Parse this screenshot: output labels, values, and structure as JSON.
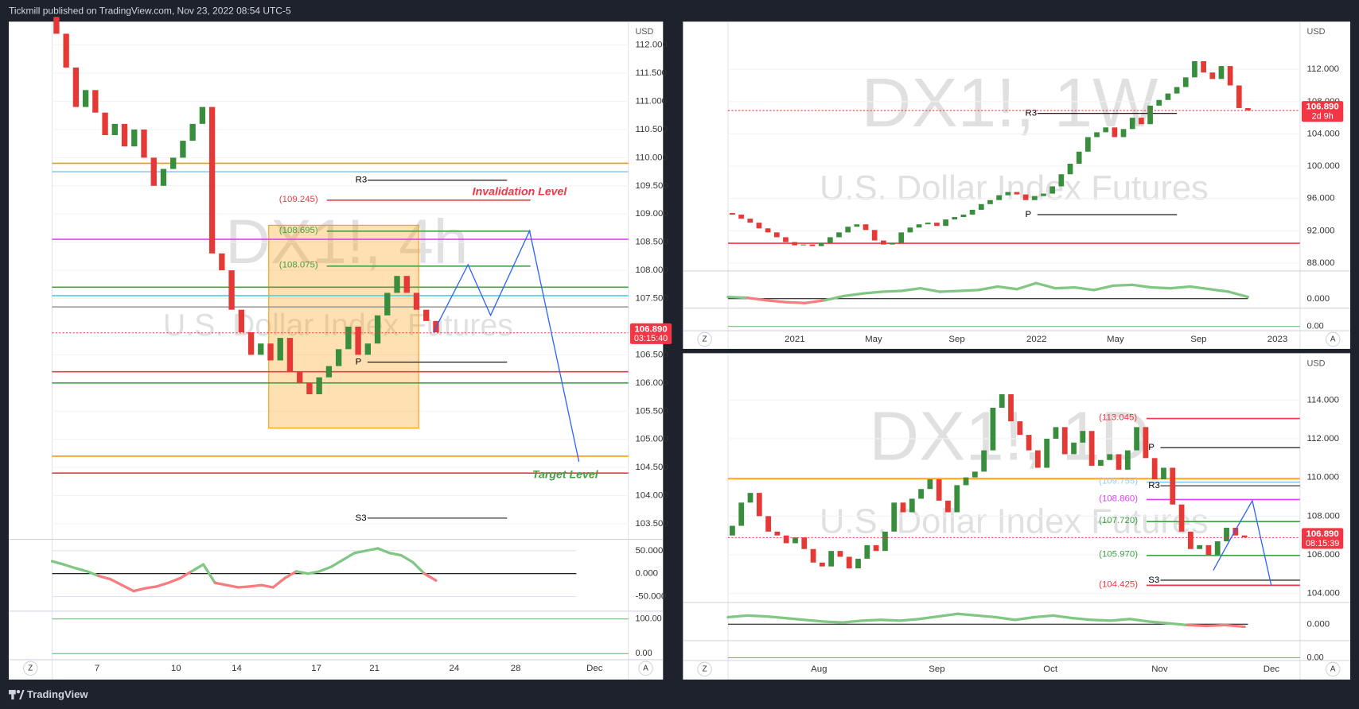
{
  "header": {
    "publisher": "Tickmill published on TradingView.com, Nov 23, 2022 08:54 UTC-5",
    "brand": "TradingView"
  },
  "chart_data": [
    {
      "type": "candlestick",
      "title": "DX1!, 4h",
      "subtitle": "U.S. Dollar Index Futures",
      "currency": "USD",
      "up_color": "#388e3c",
      "down_color": "#e53935",
      "open": 112.5,
      "closes": [
        112.2,
        111.6,
        110.9,
        111.2,
        110.8,
        110.4,
        110.6,
        110.2,
        110.5,
        110.0,
        109.5,
        109.8,
        110.0,
        110.3,
        110.6,
        110.9,
        108.3,
        108.0,
        107.3,
        106.9,
        106.5,
        106.7,
        106.4,
        106.8,
        106.2,
        106.0,
        105.8,
        106.1,
        106.3,
        106.6,
        107.0,
        106.5,
        106.7,
        107.2,
        107.6,
        107.9,
        107.6,
        107.3,
        107.1,
        106.9
      ],
      "ylim": [
        103.27,
        112.415
      ],
      "yticks": [
        {
          "value": 112,
          "label": "112.000"
        },
        {
          "value": 111.5,
          "label": "111.500"
        },
        {
          "value": 111,
          "label": "111.000"
        },
        {
          "value": 110.5,
          "label": "110.500"
        },
        {
          "value": 110,
          "label": "110.000"
        },
        {
          "value": 109.5,
          "label": "109.500"
        },
        {
          "value": 109,
          "label": "109.000"
        },
        {
          "value": 108.5,
          "label": "108.500"
        },
        {
          "value": 108,
          "label": "108.000"
        },
        {
          "value": 107.5,
          "label": "107.500"
        },
        {
          "value": 106.5,
          "label": "106.500"
        },
        {
          "value": 106,
          "label": "106.000"
        },
        {
          "value": 105.5,
          "label": "105.500"
        },
        {
          "value": 105,
          "label": "105.000"
        },
        {
          "value": 104.5,
          "label": "104.500"
        },
        {
          "value": 104,
          "label": "104.000"
        },
        {
          "value": 103.5,
          "label": "103.500"
        }
      ],
      "xtick_labels": [
        "7",
        "10",
        "14",
        "17",
        "21",
        "24",
        "28",
        "Dec"
      ],
      "levels": [
        {
          "value": 109.9,
          "color": "#ff9800"
        },
        {
          "value": 109.75,
          "color": "#90caf9"
        },
        {
          "value": 109.6,
          "color": "#000000",
          "label": "R3"
        },
        {
          "value": 109.245,
          "color": "#f23645",
          "label": "(109.245)"
        },
        {
          "value": 108.695,
          "color": "#43a047",
          "label": "(108.695)"
        },
        {
          "value": 108.55,
          "color": "#e040fb"
        },
        {
          "value": 108.075,
          "color": "#43a047",
          "label": "(108.075)"
        },
        {
          "value": 107.7,
          "color": "#43a047"
        },
        {
          "value": 107.55,
          "color": "#4dd0e1"
        },
        {
          "value": 107.35,
          "color": "#9e9e9e"
        },
        {
          "value": 106.37,
          "color": "#000000",
          "label": "P"
        },
        {
          "value": 106.2,
          "color": "#f23645"
        },
        {
          "value": 106.0,
          "color": "#43a047"
        },
        {
          "value": 104.7,
          "color": "#ff9800"
        },
        {
          "value": 104.4,
          "color": "#f23645"
        },
        {
          "value": 103.6,
          "color": "#000000",
          "label": "S3"
        }
      ],
      "annotations": [
        {
          "text": "Invalidation Level",
          "color": "#f23645"
        },
        {
          "text": "Target Level",
          "color": "#43a047"
        }
      ],
      "last_price": {
        "value": 106.89,
        "label": "106.890",
        "timer": "03:15:40"
      },
      "projection": [
        106.9,
        108.1,
        107.2,
        108.7,
        104.6
      ],
      "box": [
        108.8,
        105.2
      ],
      "oscillator": {
        "ylim": [
          -80,
          71
        ],
        "yticks": [
          {
            "value": 50,
            "label": "50.000"
          },
          {
            "value": 0,
            "label": "0.000"
          },
          {
            "value": -50,
            "label": "-50.000"
          }
        ],
        "values": [
          27,
          20,
          12,
          5,
          -5,
          -12,
          -25,
          -38,
          -32,
          -28,
          -20,
          -10,
          5,
          20,
          -20,
          -25,
          -30,
          -28,
          -25,
          -30,
          -10,
          5,
          0,
          5,
          15,
          30,
          45,
          50,
          55,
          45,
          40,
          25,
          0,
          -15
        ]
      },
      "stochastic": {
        "ylim": [
          -12.5,
          117.5
        ],
        "yticks": [
          {
            "value": 100,
            "label": "100.00"
          },
          {
            "value": 0,
            "label": "0.00"
          }
        ]
      },
      "buttons": [
        "Z",
        "A"
      ]
    },
    {
      "type": "candlestick",
      "title": "DX1!, 1W",
      "subtitle": "U.S. Dollar Index Futures",
      "currency": "USD",
      "up_color": "#388e3c",
      "down_color": "#e53935",
      "open": 94.2,
      "closes": [
        94,
        93.5,
        93,
        92.3,
        91.8,
        91.2,
        90.6,
        90.2,
        90.3,
        90.1,
        90.5,
        91.2,
        91.8,
        92.5,
        92.8,
        92.1,
        90.8,
        90.3,
        90.5,
        91.8,
        92.4,
        92.8,
        93.0,
        92.6,
        93.4,
        93.7,
        94.0,
        94.6,
        95.3,
        95.8,
        96.4,
        96.8,
        96.5,
        95.8,
        96.3,
        96.6,
        97.5,
        99.0,
        100.3,
        101.8,
        103.6,
        104.2,
        104.8,
        103.6,
        104.6,
        106.0,
        105.2,
        107.5,
        108.2,
        109.0,
        109.8,
        111.0,
        113.0,
        111.6,
        110.8,
        112.4,
        110.0,
        107.2,
        106.9
      ],
      "ylim": [
        87.13,
        117.9
      ],
      "yticks": [
        {
          "value": 112,
          "label": "112.000"
        },
        {
          "value": 108,
          "label": "108.000"
        },
        {
          "value": 104,
          "label": "104.000"
        },
        {
          "value": 100,
          "label": "100.000"
        },
        {
          "value": 96,
          "label": "96.000"
        },
        {
          "value": 92,
          "label": "92.000"
        },
        {
          "value": 88,
          "label": "88.000"
        }
      ],
      "xtick_labels": [
        "2021",
        "May",
        "Sep",
        "2022",
        "May",
        "Sep",
        "2023"
      ],
      "levels": [
        {
          "value": 106.53,
          "color": "#000000",
          "label": "R3"
        },
        {
          "value": 94.0,
          "color": "#000000",
          "label": "P"
        },
        {
          "value": 90.45,
          "color": "#f23645"
        }
      ],
      "last_price": {
        "value": 106.89,
        "label": "106.890",
        "timer": "2d 9h"
      },
      "oscillator": {
        "ylim": [
          -1,
          3
        ],
        "yticks": [
          {
            "value": 0,
            "label": "0.000"
          }
        ],
        "values": [
          0.2,
          0.1,
          -0.2,
          -0.4,
          -0.5,
          -0.2,
          0.3,
          0.6,
          0.8,
          0.9,
          1.2,
          0.8,
          0.9,
          1.0,
          1.4,
          1.1,
          1.8,
          1.2,
          1.3,
          1.0,
          1.5,
          1.6,
          1.3,
          1.2,
          1.4,
          1.1,
          0.8,
          0.2
        ]
      },
      "stochastic": {
        "ylim": [
          -26,
          100
        ],
        "yticks": [
          {
            "value": 0,
            "label": "0.00"
          }
        ]
      },
      "buttons": [
        "Z",
        "A"
      ]
    },
    {
      "type": "candlestick",
      "title": "DX1!, 1D",
      "subtitle": "U.S. Dollar Index Futures",
      "currency": "USD",
      "up_color": "#388e3c",
      "down_color": "#e53935",
      "open": 107.0,
      "closes": [
        107.5,
        108.7,
        109.2,
        108.0,
        107.2,
        107.0,
        106.6,
        106.9,
        106.3,
        105.6,
        105.4,
        106.2,
        105.9,
        105.3,
        105.8,
        106.5,
        106.2,
        107.2,
        108.7,
        108.2,
        108.9,
        109.4,
        109.9,
        108.8,
        108.2,
        109.6,
        110.0,
        110.3,
        111.4,
        113.6,
        114.3,
        112.9,
        112.2,
        111.4,
        110.5,
        112.0,
        112.6,
        111.2,
        111.8,
        112.4,
        110.6,
        110.9,
        111.2,
        110.4,
        111.4,
        112.6,
        111.0,
        109.9,
        110.5,
        108.6,
        107.2,
        106.3,
        106.5,
        106.0,
        106.7,
        107.4,
        107.0,
        106.9
      ],
      "ylim": [
        103.58,
        116.42
      ],
      "yticks": [
        {
          "value": 114,
          "label": "114.000"
        },
        {
          "value": 112,
          "label": "112.000"
        },
        {
          "value": 110,
          "label": "110.000"
        },
        {
          "value": 108,
          "label": "108.000"
        },
        {
          "value": 106,
          "label": "106.000"
        },
        {
          "value": 104,
          "label": "104.000"
        }
      ],
      "xtick_labels": [
        "Aug",
        "Sep",
        "Oct",
        "Nov",
        "Dec"
      ],
      "levels": [
        {
          "value": 113.045,
          "color": "#f23645",
          "label": "(113.045)"
        },
        {
          "value": 111.54,
          "color": "#000000",
          "label": "P"
        },
        {
          "value": 109.93,
          "color": "#ff9800"
        },
        {
          "value": 109.755,
          "color": "#90caf9",
          "label": "(109.755)"
        },
        {
          "value": 109.57,
          "color": "#000000",
          "label": "R3"
        },
        {
          "value": 108.86,
          "color": "#e040fb",
          "label": "(108.860)"
        },
        {
          "value": 107.72,
          "color": "#43a047",
          "label": "(107.720)"
        },
        {
          "value": 105.97,
          "color": "#43a047",
          "label": "(105.970)"
        },
        {
          "value": 104.69,
          "color": "#000000",
          "label": "S3"
        },
        {
          "value": 104.425,
          "color": "#f23645",
          "label": "(104.425)"
        }
      ],
      "last_price": {
        "value": 106.89,
        "label": "106.890",
        "timer": "08:15:39"
      },
      "projection": [
        105.2,
        107.0,
        108.8,
        104.4
      ],
      "oscillator": {
        "ylim": [
          -1.9,
          2.3
        ],
        "yticks": [
          {
            "value": 0,
            "label": "0.000"
          }
        ],
        "values": [
          0.8,
          1.0,
          0.9,
          0.7,
          0.5,
          0.3,
          0.2,
          0.4,
          0.5,
          0.4,
          0.6,
          0.9,
          1.2,
          1.0,
          0.8,
          0.5,
          0.8,
          1.0,
          0.7,
          0.5,
          0.4,
          0.6,
          0.3,
          0.1,
          -0.1,
          -0.2,
          -0.1,
          -0.3
        ]
      },
      "stochastic": {
        "ylim": [
          -30,
          100
        ],
        "yticks": [
          {
            "value": 0,
            "label": "0.00"
          }
        ]
      },
      "buttons": [
        "Z",
        "A"
      ]
    }
  ]
}
